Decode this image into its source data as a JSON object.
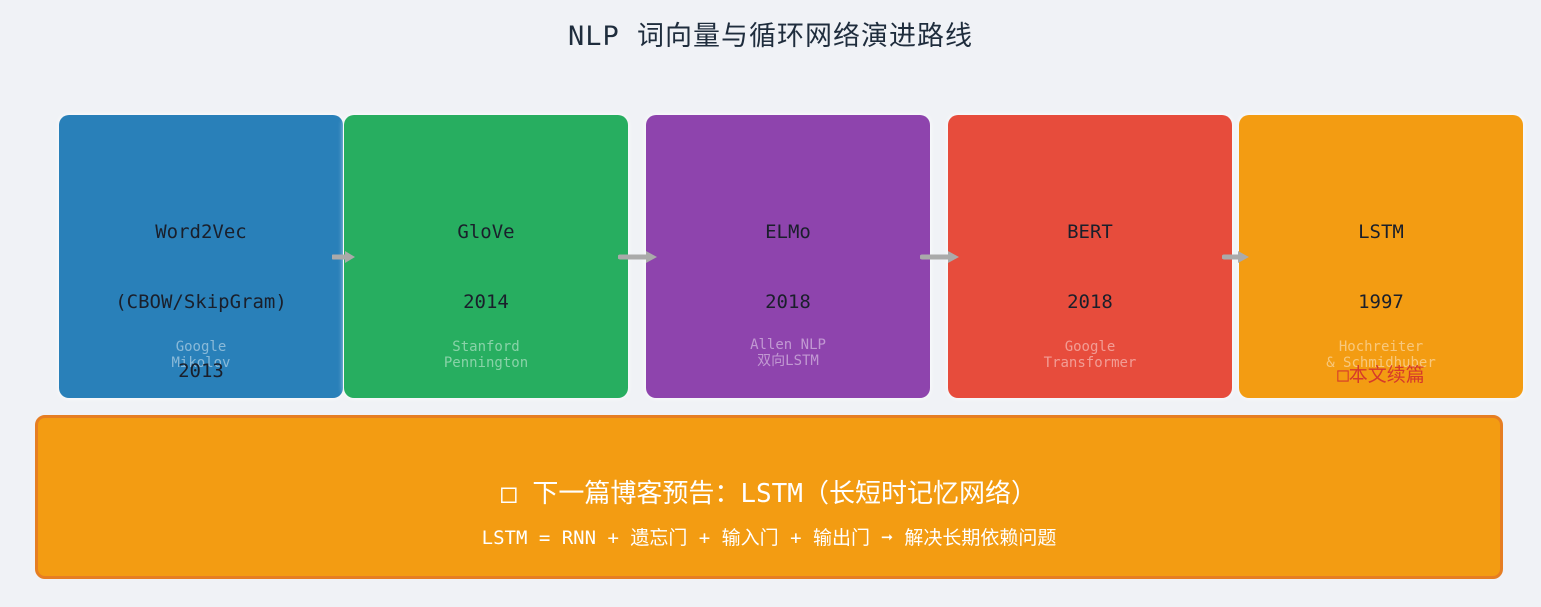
{
  "title": "NLP 词向量与循环网络演进路线",
  "colors": {
    "background": "#f0f2f6",
    "word2vec": "#2980b9",
    "glove": "#27ae60",
    "elmo": "#8e44ad",
    "bert": "#e74c3c",
    "lstm": "#f39c12",
    "banner": "#f39c12",
    "banner_border": "#e67e22",
    "arrow": "#aaaaaa",
    "note": "#d63a2a"
  },
  "nodes": [
    {
      "name": "Word2Vec",
      "subtitle": "(CBOW/SkipGram)",
      "org": "Google",
      "org2": "Mikolov",
      "year": "2013"
    },
    {
      "name": "GloVe",
      "year": "2014",
      "org": "Stanford",
      "org2": "Pennington"
    },
    {
      "name": "ELMo",
      "year": "2018",
      "org": "Allen NLP",
      "org2": "双向LSTM"
    },
    {
      "name": "BERT",
      "year": "2018",
      "org": "Google",
      "org2": "Transformer"
    },
    {
      "name": "LSTM",
      "year": "1997",
      "org": "Hochreiter",
      "org2": "& Schmidhuber",
      "note": "□本文续篇"
    }
  ],
  "edges": [
    {
      "from": "Word2Vec",
      "to": "GloVe"
    },
    {
      "from": "GloVe",
      "to": "ELMo"
    },
    {
      "from": "ELMo",
      "to": "BERT"
    },
    {
      "from": "BERT",
      "to": "LSTM"
    }
  ],
  "banner": {
    "title": "□ 下一篇博客预告：LSTM（长短时记忆网络）",
    "subtitle": "LSTM = RNN + 遗忘门 + 输入门 + 输出门 ➞ 解决长期依赖问题"
  }
}
